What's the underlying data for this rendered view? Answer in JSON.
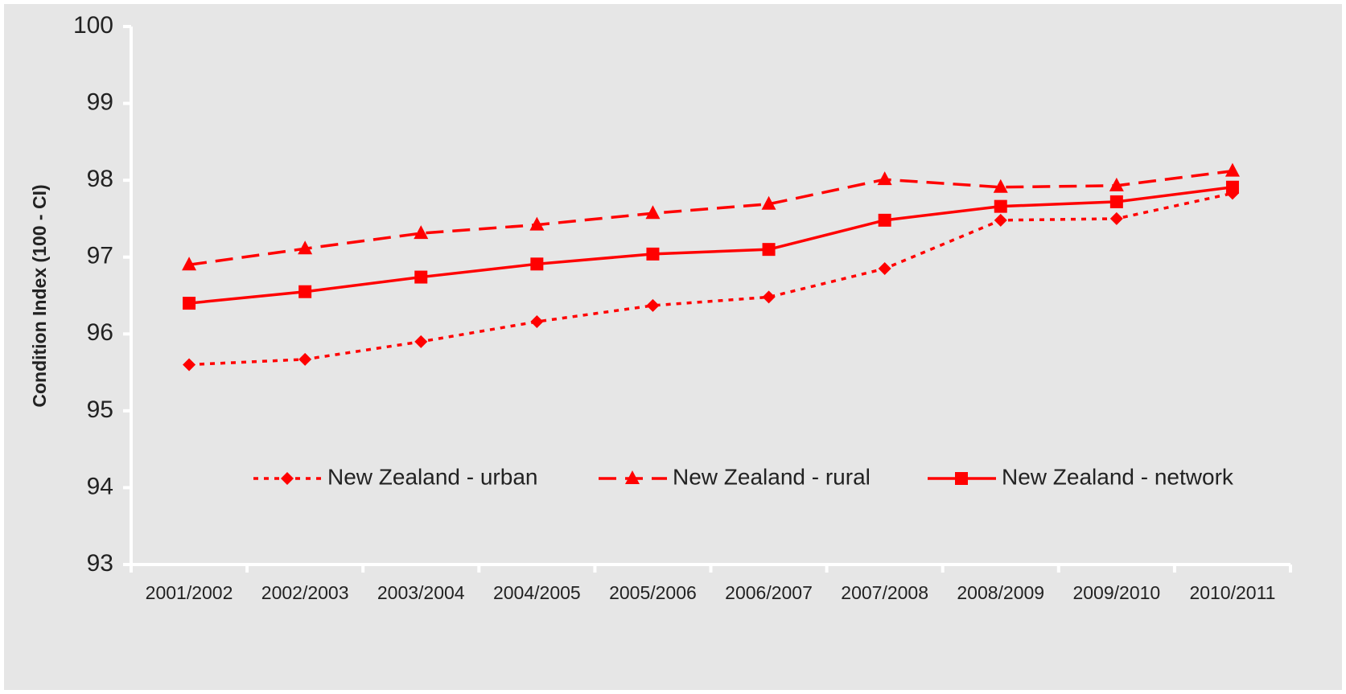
{
  "chart_data": {
    "type": "line",
    "y_label": "Condition Index (100 - CI)",
    "categories": [
      "2001/2002",
      "2002/2003",
      "2003/2004",
      "2004/2005",
      "2005/2006",
      "2006/2007",
      "2007/2008",
      "2008/2009",
      "2009/2010",
      "2010/2011"
    ],
    "series": [
      {
        "name": "New Zealand - urban",
        "color": "#ff0000",
        "dash": "dotted",
        "marker": "diamond",
        "values": [
          95.6,
          95.67,
          95.9,
          96.16,
          96.37,
          96.48,
          96.85,
          97.48,
          97.5,
          97.83
        ]
      },
      {
        "name": "New Zealand - rural",
        "color": "#ff0000",
        "dash": "dashed",
        "marker": "triangle",
        "values": [
          96.9,
          97.11,
          97.31,
          97.42,
          97.57,
          97.69,
          98.01,
          97.91,
          97.93,
          98.12
        ]
      },
      {
        "name": "New Zealand - network",
        "color": "#ff0000",
        "dash": "solid",
        "marker": "square",
        "values": [
          96.4,
          96.55,
          96.74,
          96.91,
          97.04,
          97.1,
          97.48,
          97.66,
          97.72,
          97.91
        ]
      }
    ],
    "ylim": [
      93,
      100
    ],
    "yticks": [
      93,
      94,
      95,
      96,
      97,
      98,
      99,
      100
    ],
    "grid": false,
    "legend": "lower center"
  }
}
